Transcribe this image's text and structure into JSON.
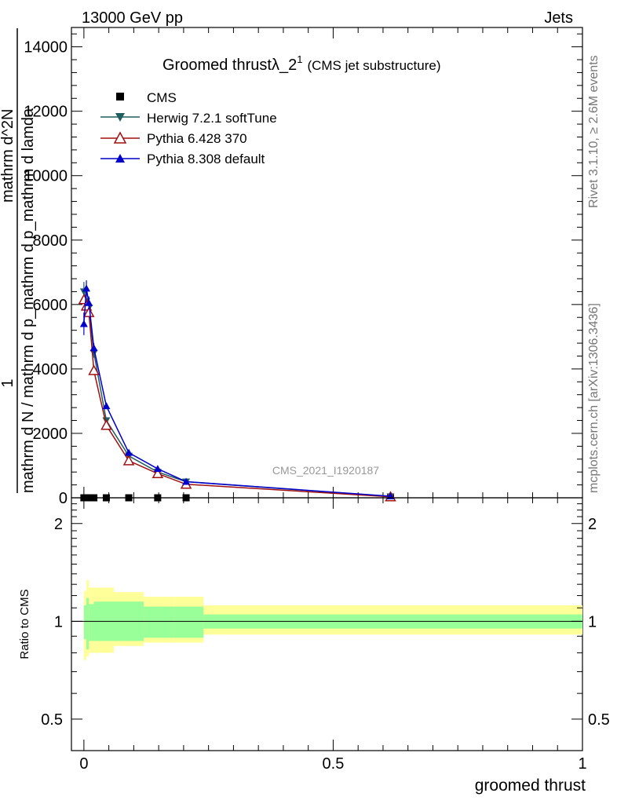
{
  "header": {
    "left": "13000 GeV pp",
    "right": "Jets"
  },
  "side_labels": {
    "version": "Rivet 3.1.10, ≥ 2.6M events",
    "source": "mcplots.cern.ch [arXiv:1306.3436]"
  },
  "watermark": "CMS_2021_I1920187",
  "chart_data": {
    "type": "line",
    "title": "Groomed thrustλ_2",
    "title_sup": "1",
    "subtitle": "(CMS jet substructure)",
    "xlabel": "groomed thrust",
    "ylabel": {
      "numerator": "1",
      "denominator": "mathrm d N / mathrm d p_mathrm d p_mathrm d lamda",
      "right_part": "mathrm d^2N"
    },
    "ratio_ylabel": "Ratio to CMS",
    "xlim": [
      -0.025,
      1.0
    ],
    "ylim": [
      0,
      14600
    ],
    "ratio_ylim": [
      0.4,
      2.4
    ],
    "x_ticks": [
      0,
      0.5,
      1
    ],
    "x_tick_labels": [
      "0",
      "0.5",
      "1"
    ],
    "y_ticks": [
      0,
      2000,
      4000,
      6000,
      8000,
      10000,
      12000,
      14000
    ],
    "y_tick_labels": [
      "0",
      "2000",
      "4000",
      "6000",
      "8000",
      "10000",
      "12000",
      "14000"
    ],
    "ratio_ticks": [
      0.5,
      1,
      2
    ],
    "ratio_tick_labels": [
      "0.5",
      "1",
      "2"
    ],
    "series": [
      {
        "name": "CMS",
        "color": "#000000",
        "marker": "square",
        "x": [
          0.0,
          0.005,
          0.01,
          0.015,
          0.02,
          0.045,
          0.09,
          0.148,
          0.205,
          0.615
        ],
        "y": [
          0,
          0,
          0,
          0,
          0,
          0,
          0,
          0,
          0,
          0
        ]
      },
      {
        "name": "Herwig 7.2.1 softTune",
        "color": "#1f5f5f",
        "marker": "triangle-down",
        "x": [
          0.0,
          0.005,
          0.01,
          0.02,
          0.045,
          0.09,
          0.148,
          0.205,
          0.615
        ],
        "y": [
          6400,
          6100,
          5900,
          4500,
          2400,
          1300,
          800,
          500,
          40
        ],
        "yerr": [
          300,
          250,
          200,
          150,
          100,
          60,
          40,
          30,
          10
        ]
      },
      {
        "name": "Pythia 6.428 370",
        "color": "#a01010",
        "marker": "triangle-up-open",
        "x": [
          0.0,
          0.005,
          0.01,
          0.02,
          0.045,
          0.09,
          0.148,
          0.205,
          0.615
        ],
        "y": [
          6150,
          5950,
          5750,
          3950,
          2250,
          1150,
          750,
          420,
          30
        ]
      },
      {
        "name": "Pythia 8.308 default",
        "color": "#0000cc",
        "marker": "triangle-up",
        "x": [
          0.0,
          0.005,
          0.01,
          0.02,
          0.045,
          0.09,
          0.148,
          0.205,
          0.615
        ],
        "y": [
          5400,
          6500,
          6050,
          4650,
          2850,
          1400,
          900,
          500,
          50
        ],
        "yerr": [
          350,
          250,
          200,
          150,
          100,
          60,
          40,
          30,
          10
        ]
      }
    ],
    "ratio_bands": {
      "bin_edges": [
        0.0,
        0.005,
        0.01,
        0.02,
        0.06,
        0.12,
        0.18,
        0.24,
        1.0
      ],
      "inner_lo": [
        0.88,
        0.82,
        0.87,
        0.87,
        0.87,
        0.89,
        0.89,
        0.95
      ],
      "inner_hi": [
        1.12,
        1.18,
        1.13,
        1.15,
        1.15,
        1.11,
        1.11,
        1.05
      ],
      "outer_lo": [
        0.76,
        0.78,
        0.8,
        0.8,
        0.84,
        0.86,
        0.86,
        0.91
      ],
      "outer_hi": [
        1.24,
        1.34,
        1.27,
        1.27,
        1.23,
        1.19,
        1.19,
        1.12
      ],
      "inner_color": "#99ff99",
      "outer_color": "#ffff99"
    }
  }
}
